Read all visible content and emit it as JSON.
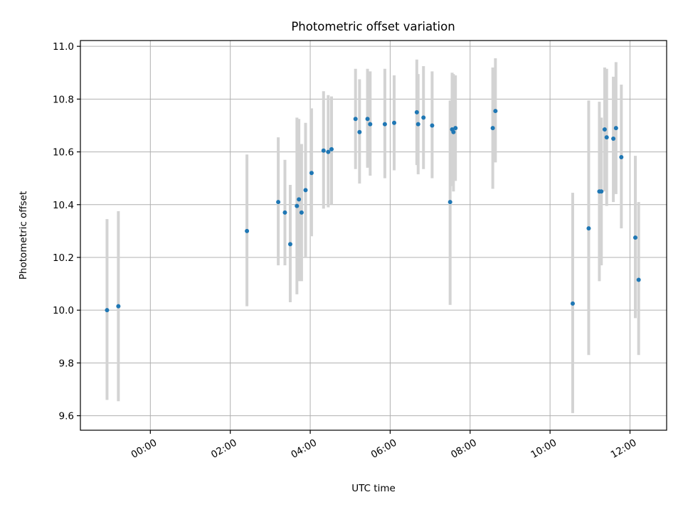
{
  "chart_data": {
    "type": "scatter",
    "title": "Photometric offset variation",
    "xlabel": "UTC time",
    "ylabel": "Photometric offset",
    "x_tick_labels": [
      "00:00",
      "02:00",
      "04:00",
      "06:00",
      "08:00",
      "10:00",
      "12:00"
    ],
    "y_ticks": [
      9.6,
      9.8,
      10.0,
      10.2,
      10.4,
      10.6,
      10.8,
      11.0
    ],
    "y_tick_labels": [
      "9.6",
      "9.8",
      "10.0",
      "10.2",
      "10.4",
      "10.6",
      "10.8",
      "11.0"
    ],
    "xlim": [
      "-01:45",
      "12:55"
    ],
    "ylim": [
      9.545,
      11.022
    ],
    "grid": true,
    "colors": {
      "marker": "#1f77b4",
      "errorbar": "#d3d3d3",
      "grid": "#b0b0b0"
    },
    "points": [
      {
        "x": "-01:05",
        "y": 10.0,
        "err_low": 9.66,
        "err_high": 10.345
      },
      {
        "x": "-00:48",
        "y": 10.015,
        "err_low": 9.655,
        "err_high": 10.375
      },
      {
        "x": "02:25",
        "y": 10.3,
        "err_low": 10.015,
        "err_high": 10.59
      },
      {
        "x": "03:12",
        "y": 10.41,
        "err_low": 10.17,
        "err_high": 10.655
      },
      {
        "x": "03:22",
        "y": 10.37,
        "err_low": 10.17,
        "err_high": 10.57
      },
      {
        "x": "03:30",
        "y": 10.25,
        "err_low": 10.03,
        "err_high": 10.475
      },
      {
        "x": "03:40",
        "y": 10.395,
        "err_low": 10.06,
        "err_high": 10.73
      },
      {
        "x": "03:43",
        "y": 10.42,
        "err_low": 10.11,
        "err_high": 10.725
      },
      {
        "x": "03:47",
        "y": 10.37,
        "err_low": 10.11,
        "err_high": 10.63
      },
      {
        "x": "03:53",
        "y": 10.455,
        "err_low": 10.2,
        "err_high": 10.71
      },
      {
        "x": "04:02",
        "y": 10.52,
        "err_low": 10.28,
        "err_high": 10.765
      },
      {
        "x": "04:20",
        "y": 10.605,
        "err_low": 10.385,
        "err_high": 10.83
      },
      {
        "x": "04:27",
        "y": 10.6,
        "err_low": 10.39,
        "err_high": 10.815
      },
      {
        "x": "04:32",
        "y": 10.61,
        "err_low": 10.4,
        "err_high": 10.81
      },
      {
        "x": "05:08",
        "y": 10.725,
        "err_low": 10.535,
        "err_high": 10.915
      },
      {
        "x": "05:14",
        "y": 10.675,
        "err_low": 10.48,
        "err_high": 10.875
      },
      {
        "x": "05:26",
        "y": 10.725,
        "err_low": 10.54,
        "err_high": 10.915
      },
      {
        "x": "05:30",
        "y": 10.705,
        "err_low": 10.51,
        "err_high": 10.905
      },
      {
        "x": "05:52",
        "y": 10.705,
        "err_low": 10.5,
        "err_high": 10.915
      },
      {
        "x": "06:06",
        "y": 10.71,
        "err_low": 10.53,
        "err_high": 10.89
      },
      {
        "x": "06:40",
        "y": 10.75,
        "err_low": 10.55,
        "err_high": 10.95
      },
      {
        "x": "06:42",
        "y": 10.705,
        "err_low": 10.515,
        "err_high": 10.895
      },
      {
        "x": "06:50",
        "y": 10.73,
        "err_low": 10.535,
        "err_high": 10.925
      },
      {
        "x": "07:03",
        "y": 10.7,
        "err_low": 10.5,
        "err_high": 10.905
      },
      {
        "x": "07:30",
        "y": 10.41,
        "err_low": 10.02,
        "err_high": 10.795
      },
      {
        "x": "07:33",
        "y": 10.685,
        "err_low": 10.47,
        "err_high": 10.9
      },
      {
        "x": "07:35",
        "y": 10.675,
        "err_low": 10.45,
        "err_high": 10.895
      },
      {
        "x": "07:38",
        "y": 10.69,
        "err_low": 10.49,
        "err_high": 10.89
      },
      {
        "x": "08:34",
        "y": 10.69,
        "err_low": 10.46,
        "err_high": 10.92
      },
      {
        "x": "08:38",
        "y": 10.755,
        "err_low": 10.56,
        "err_high": 10.955
      },
      {
        "x": "10:34",
        "y": 10.025,
        "err_low": 9.61,
        "err_high": 10.445
      },
      {
        "x": "10:58",
        "y": 10.31,
        "err_low": 9.83,
        "err_high": 10.795
      },
      {
        "x": "11:14",
        "y": 10.45,
        "err_low": 10.11,
        "err_high": 10.79
      },
      {
        "x": "11:17",
        "y": 10.45,
        "err_low": 10.17,
        "err_high": 10.73
      },
      {
        "x": "11:22",
        "y": 10.685,
        "err_low": 10.45,
        "err_high": 10.92
      },
      {
        "x": "11:25",
        "y": 10.655,
        "err_low": 10.395,
        "err_high": 10.915
      },
      {
        "x": "11:35",
        "y": 10.65,
        "err_low": 10.41,
        "err_high": 10.885
      },
      {
        "x": "11:39",
        "y": 10.69,
        "err_low": 10.44,
        "err_high": 10.94
      },
      {
        "x": "11:47",
        "y": 10.58,
        "err_low": 10.31,
        "err_high": 10.855
      },
      {
        "x": "12:08",
        "y": 10.275,
        "err_low": 9.97,
        "err_high": 10.585
      },
      {
        "x": "12:13",
        "y": 10.115,
        "err_low": 9.83,
        "err_high": 10.41
      }
    ]
  }
}
